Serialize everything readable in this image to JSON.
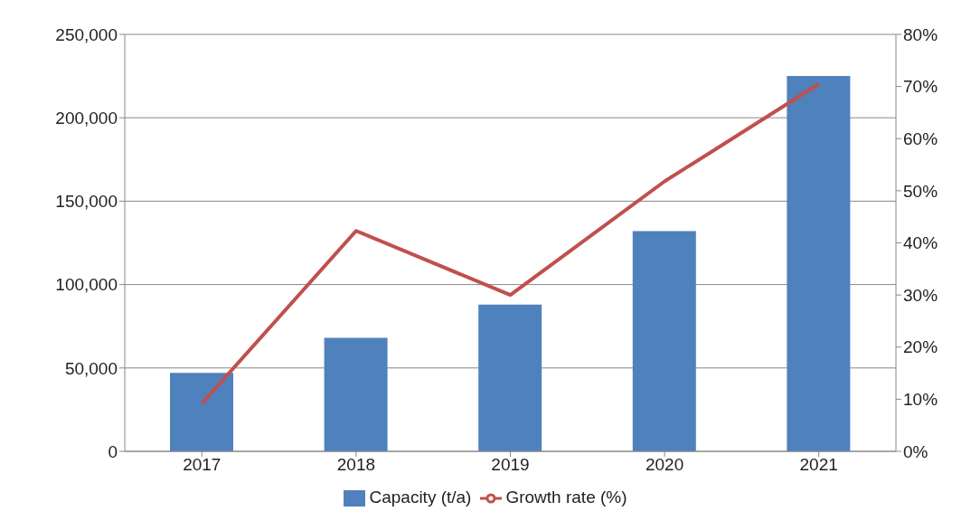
{
  "chart_data": {
    "type": "bar",
    "categories": [
      "2017",
      "2018",
      "2019",
      "2020",
      "2021"
    ],
    "series": [
      {
        "name": "Capacity (t/a)",
        "color": "#4f81bd",
        "values": [
          47000,
          68000,
          88000,
          132000,
          225000
        ]
      },
      {
        "name": "Growth rate (%)",
        "type": "line",
        "axis": "y2",
        "color": "#c0504d",
        "values": [
          9.2,
          42.3,
          30,
          51.8,
          70.5
        ]
      }
    ],
    "ylim": [
      0,
      250000
    ],
    "yticks": [
      {
        "value": 0,
        "label": "0"
      },
      {
        "value": 50000,
        "label": "50,000"
      },
      {
        "value": 100000,
        "label": "100,000"
      },
      {
        "value": 150000,
        "label": "150,000"
      },
      {
        "value": 200000,
        "label": "200,000"
      },
      {
        "value": 250000,
        "label": "250,000"
      }
    ],
    "y2lim": [
      0,
      80
    ],
    "y2ticks": [
      {
        "value": 0,
        "label": "0%"
      },
      {
        "value": 10,
        "label": "10%"
      },
      {
        "value": 20,
        "label": "20%"
      },
      {
        "value": 30,
        "label": "30%"
      },
      {
        "value": 40,
        "label": "40%"
      },
      {
        "value": 50,
        "label": "50%"
      },
      {
        "value": 60,
        "label": "60%"
      },
      {
        "value": 70,
        "label": "70%"
      },
      {
        "value": 80,
        "label": "80%"
      }
    ],
    "grid": "y",
    "legend": "bottom",
    "marker": "none"
  }
}
